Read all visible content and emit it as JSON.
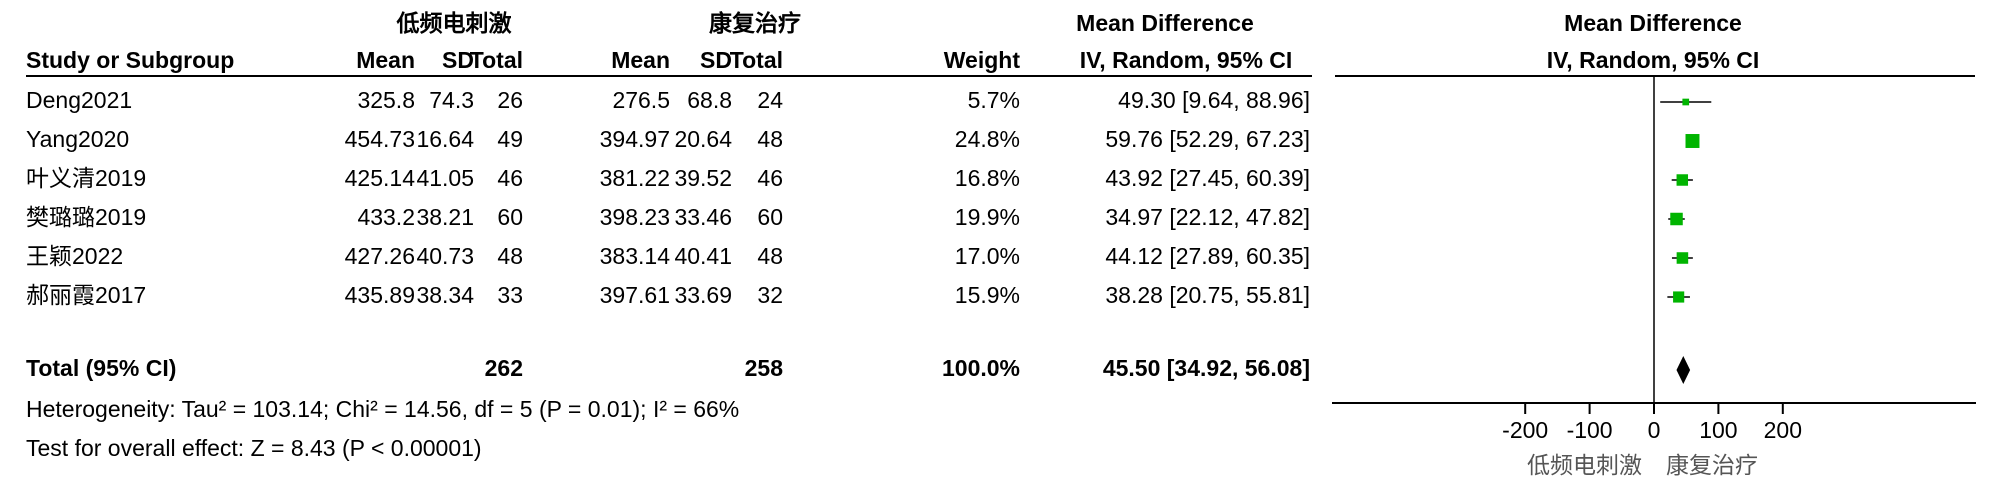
{
  "chart_data": {
    "type": "forest",
    "group_labels": [
      "低频电刺激",
      "康复治疗"
    ],
    "headers": {
      "study": "Study or Subgroup",
      "mean": "Mean",
      "sd": "SD",
      "total": "Total",
      "weight": "Weight",
      "effect": "Mean Difference",
      "method": "IV, Random, 95% CI"
    },
    "rows": [
      {
        "name": "Deng2021",
        "exp_mean": 325.8,
        "exp_sd": 74.3,
        "exp_total": 26,
        "ctl_mean": 276.5,
        "ctl_sd": 68.8,
        "ctl_total": 24,
        "weight": 5.7,
        "weight_label": "5.7%",
        "md": 49.3,
        "ci": [
          9.64,
          88.96
        ],
        "ci_label": "49.30 [9.64, 88.96]"
      },
      {
        "name": "Yang2020",
        "exp_mean": 454.73,
        "exp_sd": 16.64,
        "exp_total": 49,
        "ctl_mean": 394.97,
        "ctl_sd": 20.64,
        "ctl_total": 48,
        "weight": 24.8,
        "weight_label": "24.8%",
        "md": 59.76,
        "ci": [
          52.29,
          67.23
        ],
        "ci_label": "59.76 [52.29, 67.23]"
      },
      {
        "name": "叶义清2019",
        "exp_mean": 425.14,
        "exp_sd": 41.05,
        "exp_total": 46,
        "ctl_mean": 381.22,
        "ctl_sd": 39.52,
        "ctl_total": 46,
        "weight": 16.8,
        "weight_label": "16.8%",
        "md": 43.92,
        "ci": [
          27.45,
          60.39
        ],
        "ci_label": "43.92 [27.45, 60.39]"
      },
      {
        "name": "樊璐璐2019",
        "exp_mean": 433.2,
        "exp_sd": 38.21,
        "exp_total": 60,
        "ctl_mean": 398.23,
        "ctl_sd": 33.46,
        "ctl_total": 60,
        "weight": 19.9,
        "weight_label": "19.9%",
        "md": 34.97,
        "ci": [
          22.12,
          47.82
        ],
        "ci_label": "34.97 [22.12, 47.82]"
      },
      {
        "name": "王颖2022",
        "exp_mean": 427.26,
        "exp_sd": 40.73,
        "exp_total": 48,
        "ctl_mean": 383.14,
        "ctl_sd": 40.41,
        "ctl_total": 48,
        "weight": 17.0,
        "weight_label": "17.0%",
        "md": 44.12,
        "ci": [
          27.89,
          60.35
        ],
        "ci_label": "44.12 [27.89, 60.35]"
      },
      {
        "name": "郝丽霞2017",
        "exp_mean": 435.89,
        "exp_sd": 38.34,
        "exp_total": 33,
        "ctl_mean": 397.61,
        "ctl_sd": 33.69,
        "ctl_total": 32,
        "weight": 15.9,
        "weight_label": "15.9%",
        "md": 38.28,
        "ci": [
          20.75,
          55.81
        ],
        "ci_label": "38.28 [20.75, 55.81]"
      }
    ],
    "total": {
      "name": "Total (95% CI)",
      "exp_total": 262,
      "ctl_total": 258,
      "weight": 100,
      "weight_label": "100.0%",
      "md": 45.5,
      "ci": [
        34.92,
        56.08
      ],
      "ci_label": "45.50 [34.92, 56.08]"
    },
    "heterogeneity": "Heterogeneity: Tau² = 103.14; Chi² = 14.56, df = 5 (P = 0.01); I² = 66%",
    "overall_effect": "Test for overall effect: Z = 8.43 (P < 0.00001)",
    "xlim": [
      -500,
      500
    ],
    "xticks": [
      -200,
      -100,
      0,
      100,
      200
    ],
    "color": "#00b400"
  }
}
